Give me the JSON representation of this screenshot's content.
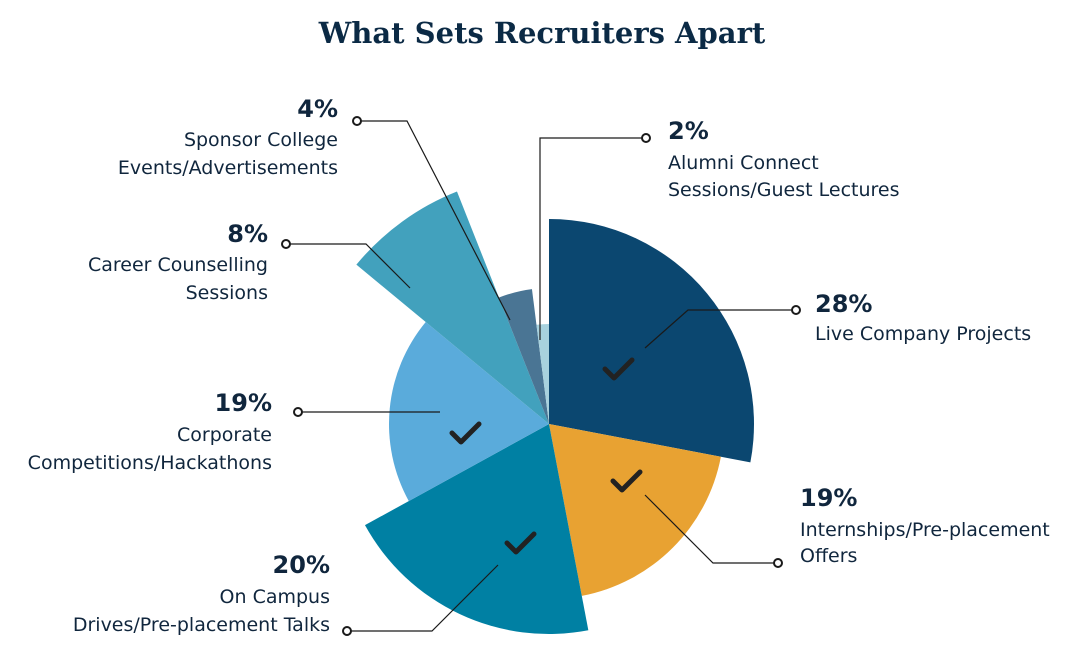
{
  "chart_data": {
    "type": "pie",
    "title": "What Sets Recruiters Apart",
    "categories": [
      [
        "Live Company Projects"
      ],
      [
        "Internships/Pre-placement",
        "Offers"
      ],
      [
        "On Campus",
        "Drives/Pre-placement Talks"
      ],
      [
        "Corporate",
        "Competitions/Hackathons"
      ],
      [
        "Career Counselling",
        "Sessions"
      ],
      [
        "Sponsor College",
        "Events/Advertisements"
      ],
      [
        "Alumni Connect",
        "Sessions/Guest Lectures"
      ]
    ],
    "values": [
      28,
      19,
      20,
      19,
      8,
      4,
      2
    ],
    "value_labels": [
      "28%",
      "19%",
      "20%",
      "19%",
      "8%",
      "4%",
      "2%"
    ],
    "colors": [
      "#0b4770",
      "#e8a232",
      "#0080a3",
      "#5aabdb",
      "#42a1bd",
      "#4a7594",
      "#a8d2de"
    ]
  }
}
